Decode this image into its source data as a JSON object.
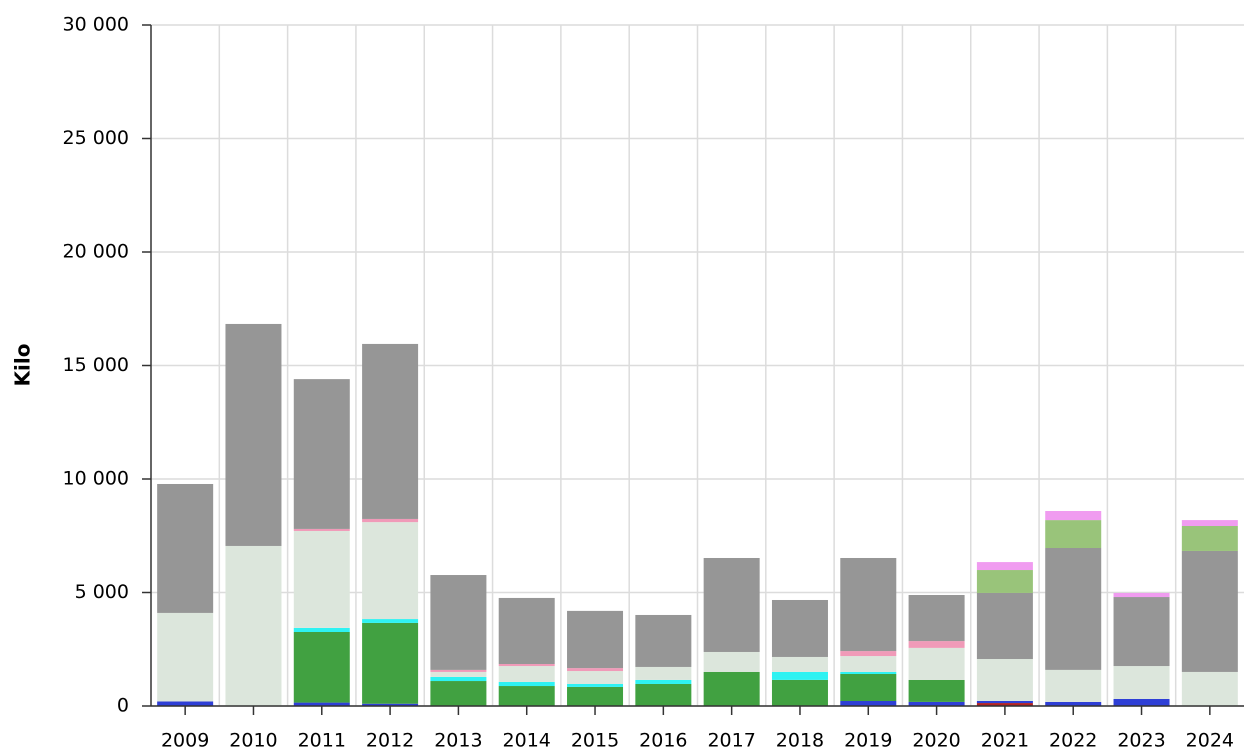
{
  "chart_data": {
    "type": "stacked-bar",
    "ylabel": "Kilo",
    "categories": [
      "2009",
      "2010",
      "2011",
      "2012",
      "2013",
      "2014",
      "2015",
      "2016",
      "2017",
      "2018",
      "2019",
      "2020",
      "2021",
      "2022",
      "2023",
      "2024"
    ],
    "series": [
      {
        "color": "#b22222",
        "values": [
          0,
          0,
          0,
          0,
          0,
          0,
          0,
          0,
          0,
          0,
          0,
          0,
          130,
          0,
          0,
          0
        ]
      },
      {
        "color": "#2e3fd6",
        "values": [
          200,
          0,
          150,
          100,
          0,
          0,
          0,
          0,
          0,
          0,
          220,
          180,
          90,
          180,
          310,
          0
        ]
      },
      {
        "color": "#41a141",
        "values": [
          0,
          0,
          3110,
          3560,
          1100,
          880,
          840,
          970,
          1500,
          1150,
          1190,
          970,
          0,
          0,
          0,
          0
        ]
      },
      {
        "color": "#2ef2f2",
        "values": [
          0,
          0,
          180,
          170,
          180,
          180,
          130,
          180,
          0,
          350,
          90,
          0,
          0,
          0,
          0,
          0
        ]
      },
      {
        "color": "#dce6dc",
        "values": [
          3900,
          7050,
          4270,
          4270,
          220,
          700,
          570,
          570,
          880,
          660,
          700,
          1410,
          1850,
          1410,
          1450,
          1500
        ]
      },
      {
        "color": "#f09ab8",
        "values": [
          0,
          0,
          90,
          140,
          90,
          90,
          130,
          0,
          0,
          0,
          220,
          300,
          0,
          0,
          0,
          0
        ]
      },
      {
        "color": "#969696",
        "values": [
          5680,
          9780,
          6600,
          7710,
          4180,
          2910,
          2520,
          2290,
          4140,
          2510,
          4100,
          2030,
          2910,
          5370,
          3040,
          5330
        ]
      },
      {
        "color": "#99c47a",
        "values": [
          0,
          0,
          0,
          0,
          0,
          0,
          0,
          0,
          0,
          0,
          0,
          0,
          1010,
          1230,
          0,
          1100
        ]
      },
      {
        "color": "#f09cf0",
        "values": [
          0,
          0,
          0,
          0,
          0,
          0,
          0,
          0,
          0,
          0,
          0,
          0,
          350,
          400,
          180,
          260
        ]
      }
    ],
    "ylim": [
      0,
      30000
    ],
    "yticks": [
      0,
      {
        "value": 5000,
        "label": "5 000"
      },
      {
        "value": 10000,
        "label": "10 000"
      },
      {
        "value": 15000,
        "label": "15 000"
      },
      {
        "value": 20000,
        "label": "20 000"
      },
      {
        "value": 25000,
        "label": "25 000"
      },
      {
        "value": 30000,
        "label": "30 000"
      }
    ],
    "grid": true
  }
}
